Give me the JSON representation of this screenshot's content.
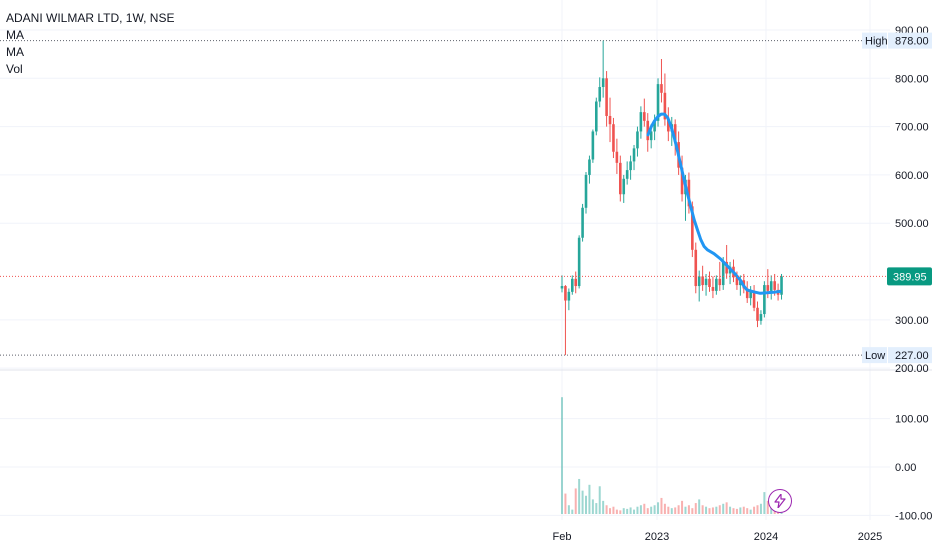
{
  "legend": {
    "title": "ADANI WILMAR LTD, 1W, NSE",
    "ma1": "MA",
    "ma2": "MA",
    "vol": "Vol"
  },
  "colors": {
    "up": "#26a69a",
    "down": "#ef5350",
    "ma": "#2196f3",
    "price_tag": "#089981",
    "price_line": "#ef5350",
    "grid": "#f0f3fa",
    "axis_text": "#131722",
    "event": "#9c27b0"
  },
  "icons": {
    "event": "lightning-bolt-icon"
  },
  "chart_data": {
    "type": "candlestick",
    "title": "ADANI WILMAR LTD, 1W, NSE",
    "price_axis": {
      "ticks": [
        "900.00",
        "800.00",
        "700.00",
        "600.00",
        "500.00",
        "300.00",
        "200.00"
      ],
      "ylim": [
        200,
        900
      ]
    },
    "volume_axis": {
      "ticks": [
        "100.00",
        "0.00",
        "-100.00"
      ],
      "ylim": [
        -100,
        200
      ]
    },
    "x_ticks": [
      "Feb",
      "2023",
      "2024",
      "2025"
    ],
    "high": {
      "label": "High",
      "value": "878.00"
    },
    "low": {
      "label": "Low",
      "value": "227.00"
    },
    "last": {
      "value": "389.95"
    },
    "series": [
      {
        "name": "MA",
        "points": [
          [
            0,
            683
          ],
          [
            0.5,
            700
          ],
          [
            1,
            712
          ],
          [
            1.5,
            721
          ],
          [
            2,
            726
          ],
          [
            2.5,
            726
          ],
          [
            3,
            718
          ],
          [
            3.5,
            700
          ],
          [
            4,
            676
          ],
          [
            4.5,
            648
          ],
          [
            5,
            618
          ],
          [
            5.5,
            588
          ],
          [
            6,
            560
          ],
          [
            6.5,
            533
          ],
          [
            7,
            507
          ],
          [
            7.5,
            486
          ],
          [
            8,
            466
          ],
          [
            8.5,
            452
          ],
          [
            9,
            445
          ],
          [
            10,
            437
          ],
          [
            11,
            426
          ],
          [
            12,
            412
          ],
          [
            13,
            398
          ],
          [
            14,
            382
          ],
          [
            14.5,
            370
          ],
          [
            15,
            362
          ],
          [
            16,
            358
          ],
          [
            17,
            355
          ],
          [
            18,
            356
          ],
          [
            19,
            357
          ],
          [
            20,
            359
          ]
        ]
      }
    ],
    "candles": [
      [
        365,
        392,
        357,
        370
      ],
      [
        370,
        372,
        227,
        340
      ],
      [
        340,
        365,
        320,
        358
      ],
      [
        358,
        392,
        352,
        385
      ],
      [
        385,
        400,
        355,
        370
      ],
      [
        370,
        475,
        365,
        470
      ],
      [
        470,
        540,
        462,
        532
      ],
      [
        532,
        606,
        520,
        600
      ],
      [
        600,
        640,
        582,
        632
      ],
      [
        632,
        694,
        625,
        690
      ],
      [
        690,
        760,
        682,
        752
      ],
      [
        752,
        802,
        740,
        782
      ],
      [
        782,
        878,
        760,
        800
      ],
      [
        800,
        815,
        700,
        722
      ],
      [
        722,
        760,
        668,
        705
      ],
      [
        705,
        718,
        635,
        648
      ],
      [
        648,
        675,
        602,
        625
      ],
      [
        625,
        640,
        545,
        560
      ],
      [
        560,
        600,
        542,
        592
      ],
      [
        592,
        628,
        580,
        610
      ],
      [
        610,
        640,
        590,
        628
      ],
      [
        628,
        662,
        610,
        655
      ],
      [
        655,
        700,
        638,
        690
      ],
      [
        690,
        742,
        675,
        730
      ],
      [
        730,
        758,
        700,
        712
      ],
      [
        712,
        728,
        648,
        672
      ],
      [
        672,
        705,
        655,
        690
      ],
      [
        690,
        725,
        672,
        712
      ],
      [
        712,
        800,
        700,
        788
      ],
      [
        788,
        840,
        750,
        770
      ],
      [
        770,
        810,
        702,
        715
      ],
      [
        715,
        740,
        670,
        690
      ],
      [
        690,
        720,
        660,
        705
      ],
      [
        705,
        715,
        640,
        668
      ],
      [
        668,
        690,
        600,
        615
      ],
      [
        615,
        640,
        545,
        560
      ],
      [
        560,
        600,
        505,
        590
      ],
      [
        590,
        605,
        520,
        535
      ],
      [
        535,
        545,
        430,
        445
      ],
      [
        445,
        460,
        355,
        370
      ],
      [
        370,
        402,
        338,
        390
      ],
      [
        390,
        412,
        360,
        372
      ],
      [
        372,
        395,
        350,
        385
      ],
      [
        385,
        400,
        358,
        368
      ],
      [
        368,
        390,
        345,
        360
      ],
      [
        360,
        392,
        352,
        385
      ],
      [
        385,
        420,
        360,
        372
      ],
      [
        372,
        430,
        362,
        420
      ],
      [
        420,
        455,
        385,
        396
      ],
      [
        396,
        420,
        374,
        410
      ],
      [
        410,
        425,
        378,
        388
      ],
      [
        388,
        400,
        362,
        372
      ],
      [
        372,
        392,
        350,
        382
      ],
      [
        382,
        395,
        355,
        365
      ],
      [
        365,
        380,
        335,
        345
      ],
      [
        345,
        370,
        330,
        360
      ],
      [
        360,
        372,
        318,
        325
      ],
      [
        325,
        338,
        285,
        298
      ],
      [
        298,
        320,
        290,
        312
      ],
      [
        312,
        380,
        305,
        372
      ],
      [
        372,
        405,
        345,
        360
      ],
      [
        360,
        392,
        342,
        380
      ],
      [
        380,
        395,
        350,
        362
      ],
      [
        362,
        375,
        340,
        352
      ],
      [
        352,
        395,
        342,
        390
      ]
    ],
    "volumes": [
      160,
      28,
      12,
      6,
      35,
      48,
      32,
      25,
      40,
      20,
      15,
      38,
      18,
      12,
      8,
      10,
      6,
      5,
      8,
      7,
      9,
      6,
      10,
      12,
      14,
      8,
      10,
      12,
      16,
      22,
      14,
      10,
      8,
      9,
      12,
      18,
      10,
      12,
      8,
      15,
      20,
      12,
      10,
      8,
      9,
      10,
      12,
      14,
      16,
      10,
      8,
      7,
      9,
      10,
      8,
      6,
      10,
      12,
      14,
      30,
      18,
      22,
      10,
      8,
      12
    ]
  }
}
